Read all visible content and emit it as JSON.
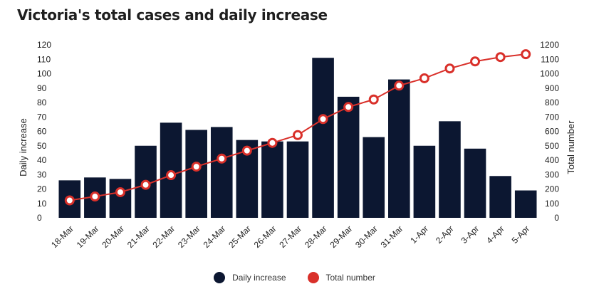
{
  "title": "Victoria's total cases and daily increase",
  "colors": {
    "bar": "#0c1731",
    "line": "#d9302a"
  },
  "chart_data": {
    "type": "bar+line",
    "title": "Victoria's total cases and daily increase",
    "categories": [
      "18-Mar",
      "19-Mar",
      "20-Mar",
      "21-Mar",
      "22-Mar",
      "23-Mar",
      "24-Mar",
      "25-Mar",
      "26-Mar",
      "27-Mar",
      "28-Mar",
      "29-Mar",
      "30-Mar",
      "31-Mar",
      "1-Apr",
      "2-Apr",
      "3-Apr",
      "4-Apr",
      "5-Apr"
    ],
    "series": [
      {
        "name": "Daily increase",
        "type": "bar",
        "axis": "left",
        "values": [
          26,
          28,
          27,
          50,
          66,
          61,
          63,
          54,
          53,
          53,
          111,
          84,
          56,
          96,
          50,
          67,
          48,
          29,
          19
        ]
      },
      {
        "name": "Total number",
        "type": "line",
        "axis": "right",
        "values": [
          121,
          148,
          178,
          229,
          296,
          355,
          411,
          466,
          520,
          574,
          685,
          769,
          821,
          917,
          968,
          1036,
          1085,
          1115,
          1135
        ]
      }
    ],
    "ylabel_left": "Daily increase",
    "ylabel_right": "Total number",
    "ylim_left": [
      0,
      120
    ],
    "ylim_right": [
      0,
      1200
    ],
    "yticks_left": [
      "0",
      "10",
      "20",
      "30",
      "40",
      "50",
      "60",
      "70",
      "80",
      "90",
      "100",
      "110",
      "120"
    ],
    "yticks_right": [
      "0",
      "100",
      "200",
      "300",
      "400",
      "500",
      "600",
      "700",
      "800",
      "900",
      "1000",
      "1100",
      "1200"
    ],
    "grid": false,
    "legend_position": "bottom"
  }
}
